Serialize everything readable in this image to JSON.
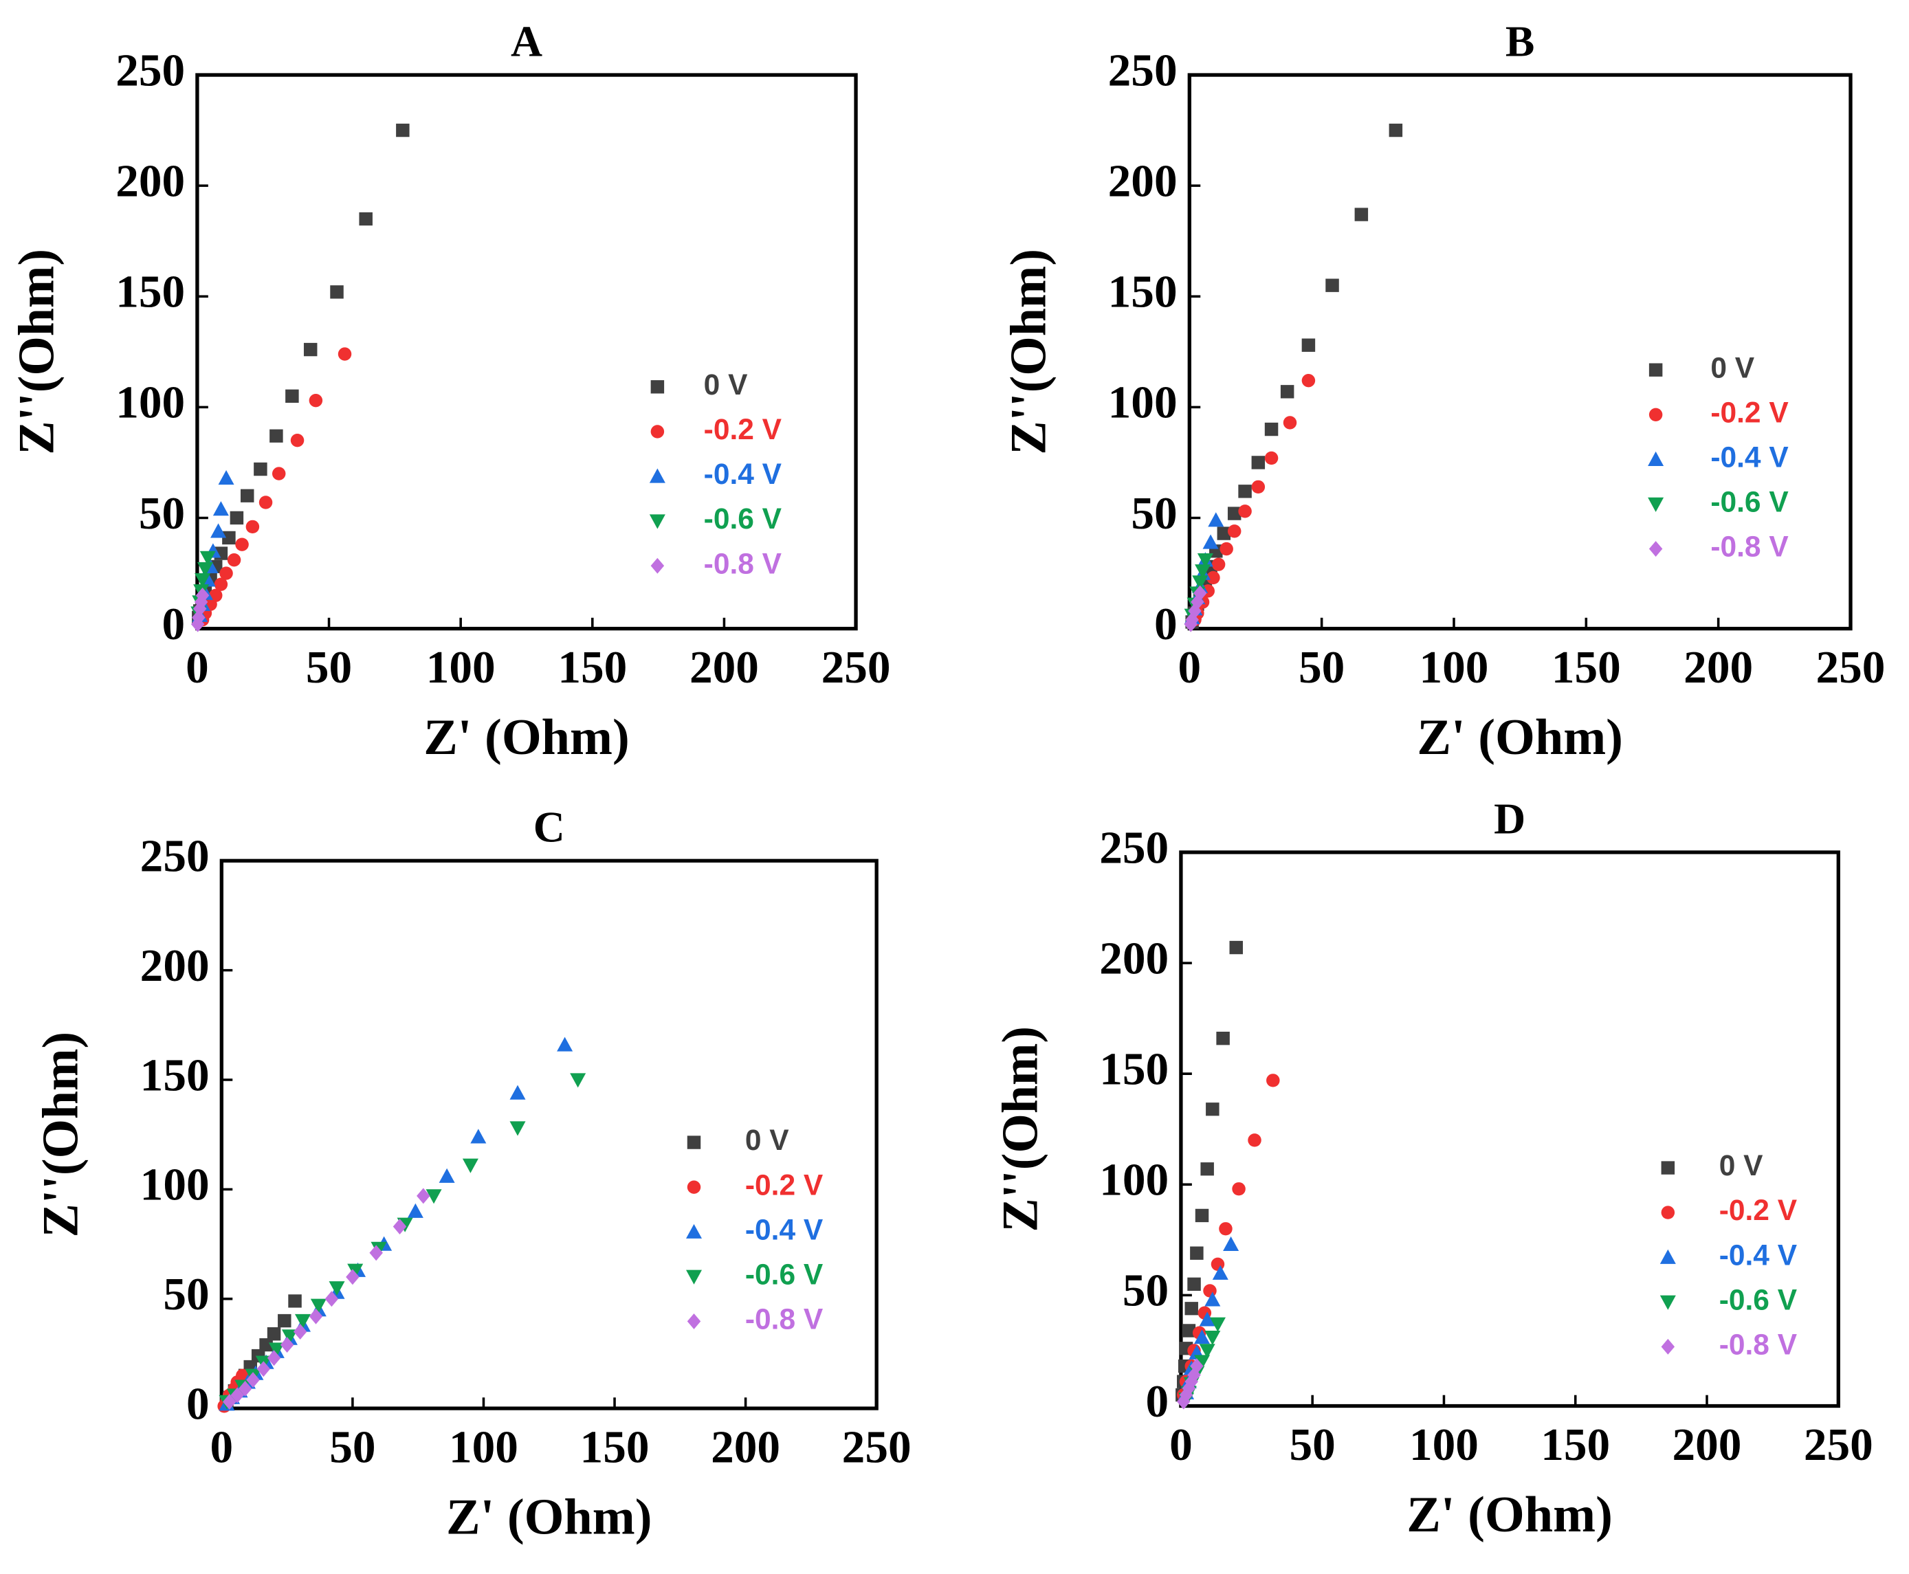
{
  "chart_data": [
    {
      "type": "scatter",
      "title": "A",
      "xlabel": "Z' (Ohm)",
      "ylabel": "Z''(Ohm)",
      "xlim": [
        0,
        250
      ],
      "ylim": [
        0,
        250
      ],
      "xticks": [
        0,
        50,
        100,
        150,
        200,
        250
      ],
      "yticks": [
        0,
        50,
        100,
        150,
        200,
        250
      ],
      "legend": "right",
      "series": [
        {
          "name": "0 V",
          "color": "#404040",
          "marker": "square",
          "x": [
            78,
            64,
            53,
            43,
            36,
            30,
            24,
            19,
            15,
            12,
            9,
            7,
            5,
            3,
            2,
            1,
            0.5
          ],
          "values": [
            225,
            185,
            152,
            126,
            105,
            87,
            72,
            60,
            50,
            41,
            34,
            28,
            22,
            17,
            12,
            8,
            5
          ]
        },
        {
          "name": "-0.2 V",
          "color": "#f03030",
          "marker": "circle",
          "x": [
            56,
            45,
            38,
            31,
            26,
            21,
            17,
            14,
            11,
            9,
            7,
            5,
            3,
            2
          ],
          "values": [
            124,
            103,
            85,
            70,
            57,
            46,
            38,
            31,
            25,
            20,
            15,
            11,
            7,
            4
          ]
        },
        {
          "name": "-0.4 V",
          "color": "#1f6fe0",
          "marker": "triangle",
          "x": [
            11,
            9,
            8,
            6,
            5,
            4,
            3,
            2,
            1
          ],
          "values": [
            68,
            54,
            44,
            35,
            28,
            22,
            16,
            11,
            6
          ]
        },
        {
          "name": "-0.6 V",
          "color": "#10a050",
          "marker": "triangle-down",
          "x": [
            4,
            3,
            2,
            1.5,
            1,
            0.5
          ],
          "values": [
            32,
            27,
            22,
            17,
            12,
            7
          ]
        },
        {
          "name": "-0.8 V",
          "color": "#c070e0",
          "marker": "diamond",
          "x": [
            2,
            1.5,
            1,
            0.5,
            0.2
          ],
          "values": [
            15,
            12,
            9,
            5,
            2
          ]
        }
      ]
    },
    {
      "type": "scatter",
      "title": "B",
      "xlabel": "Z' (Ohm)",
      "ylabel": "Z''(Ohm)",
      "xlim": [
        0,
        250
      ],
      "ylim": [
        0,
        250
      ],
      "xticks": [
        0,
        50,
        100,
        150,
        200,
        250
      ],
      "yticks": [
        0,
        50,
        100,
        150,
        200,
        250
      ],
      "legend": "right",
      "series": [
        {
          "name": "0 V",
          "color": "#404040",
          "marker": "square",
          "x": [
            78,
            65,
            54,
            45,
            37,
            31,
            26,
            21,
            17,
            13,
            10,
            8,
            6,
            4,
            3,
            2,
            1
          ],
          "values": [
            225,
            187,
            155,
            128,
            107,
            90,
            75,
            62,
            52,
            43,
            35,
            28,
            22,
            16,
            11,
            7,
            3
          ]
        },
        {
          "name": "-0.2 V",
          "color": "#f03030",
          "marker": "circle",
          "x": [
            45,
            38,
            31,
            26,
            21,
            17,
            14,
            11,
            9,
            7,
            5,
            3,
            2
          ],
          "values": [
            112,
            93,
            77,
            64,
            53,
            44,
            36,
            29,
            23,
            17,
            12,
            7,
            4
          ]
        },
        {
          "name": "-0.4 V",
          "color": "#1f6fe0",
          "marker": "triangle",
          "x": [
            10,
            8,
            6,
            5,
            4,
            3,
            2,
            1
          ],
          "values": [
            49,
            39,
            31,
            25,
            19,
            14,
            9,
            5
          ]
        },
        {
          "name": "-0.6 V",
          "color": "#10a050",
          "marker": "triangle-down",
          "x": [
            6,
            5,
            4,
            3,
            2,
            1
          ],
          "values": [
            31,
            26,
            21,
            16,
            11,
            6
          ]
        },
        {
          "name": "-0.8 V",
          "color": "#c070e0",
          "marker": "diamond",
          "x": [
            4,
            3,
            2,
            1,
            0.5
          ],
          "values": [
            16,
            12,
            8,
            4,
            2
          ]
        }
      ]
    },
    {
      "type": "scatter",
      "title": "C",
      "xlabel": "Z' (Ohm)",
      "ylabel": "Z''(Ohm)",
      "xlim": [
        0,
        250
      ],
      "ylim": [
        0,
        250
      ],
      "xticks": [
        0,
        50,
        100,
        150,
        200,
        250
      ],
      "yticks": [
        0,
        50,
        100,
        150,
        200,
        250
      ],
      "legend": "right",
      "series": [
        {
          "name": "0 V",
          "color": "#404040",
          "marker": "square",
          "x": [
            28,
            24,
            20,
            17,
            14,
            11,
            9,
            7,
            5,
            3,
            2
          ],
          "values": [
            49,
            40,
            34,
            29,
            24,
            19,
            15,
            11,
            8,
            5,
            3
          ]
        },
        {
          "name": "-0.2 V",
          "color": "#f03030",
          "marker": "circle",
          "x": [
            8,
            6,
            5,
            3,
            2,
            1
          ],
          "values": [
            15,
            12,
            9,
            6,
            3,
            1
          ]
        },
        {
          "name": "-0.4 V",
          "color": "#1f6fe0",
          "marker": "triangle",
          "x": [
            131,
            113,
            98,
            86,
            74,
            62,
            52,
            44,
            37,
            31,
            26,
            21,
            17,
            13,
            10,
            7,
            4,
            2
          ],
          "values": [
            166,
            144,
            124,
            106,
            90,
            75,
            63,
            53,
            45,
            38,
            32,
            26,
            21,
            16,
            12,
            8,
            5,
            2
          ]
        },
        {
          "name": "-0.6 V",
          "color": "#10a050",
          "marker": "triangle-down",
          "x": [
            136,
            113,
            95,
            81,
            70,
            60,
            51,
            44,
            37,
            31,
            26,
            21,
            16,
            12,
            8,
            5,
            2
          ],
          "values": [
            150,
            128,
            111,
            97,
            84,
            73,
            63,
            55,
            47,
            40,
            33,
            27,
            21,
            15,
            10,
            6,
            3
          ]
        },
        {
          "name": "-0.8 V",
          "color": "#c070e0",
          "marker": "diamond",
          "x": [
            77,
            68,
            59,
            50,
            42,
            36,
            30,
            25,
            20,
            16,
            12,
            9,
            6,
            3
          ],
          "values": [
            97,
            83,
            71,
            60,
            50,
            42,
            35,
            29,
            23,
            18,
            13,
            9,
            6,
            3
          ]
        }
      ]
    },
    {
      "type": "scatter",
      "title": "D",
      "xlabel": "Z' (Ohm)",
      "ylabel": "Z''(Ohm)",
      "xlim": [
        0,
        250
      ],
      "ylim": [
        0,
        250
      ],
      "xticks": [
        0,
        50,
        100,
        150,
        200,
        250
      ],
      "yticks": [
        0,
        50,
        100,
        150,
        200,
        250
      ],
      "legend": "right",
      "series": [
        {
          "name": "0 V",
          "color": "#404040",
          "marker": "square",
          "x": [
            21,
            16,
            12,
            10,
            8,
            6,
            5,
            4,
            3,
            2,
            1.5,
            1,
            0.5
          ],
          "values": [
            207,
            166,
            134,
            107,
            86,
            69,
            55,
            44,
            34,
            26,
            18,
            11,
            5
          ]
        },
        {
          "name": "-0.2 V",
          "color": "#f03030",
          "marker": "circle",
          "x": [
            35,
            28,
            22,
            17,
            14,
            11,
            9,
            7,
            5,
            4,
            2,
            1
          ],
          "values": [
            147,
            120,
            98,
            80,
            64,
            52,
            42,
            33,
            25,
            18,
            11,
            5
          ]
        },
        {
          "name": "-0.4 V",
          "color": "#1f6fe0",
          "marker": "triangle",
          "x": [
            19,
            15,
            12,
            10,
            8,
            6,
            4,
            3,
            2
          ],
          "values": [
            73,
            60,
            48,
            39,
            31,
            24,
            17,
            11,
            6
          ]
        },
        {
          "name": "-0.6 V",
          "color": "#10a050",
          "marker": "triangle-down",
          "x": [
            14,
            12,
            10,
            8,
            6,
            4,
            3,
            2
          ],
          "values": [
            37,
            31,
            25,
            20,
            15,
            10,
            6,
            3
          ]
        },
        {
          "name": "-0.8 V",
          "color": "#c070e0",
          "marker": "diamond",
          "x": [
            6,
            5,
            4,
            3,
            2,
            1
          ],
          "values": [
            18,
            14,
            11,
            8,
            5,
            2
          ]
        }
      ]
    }
  ]
}
